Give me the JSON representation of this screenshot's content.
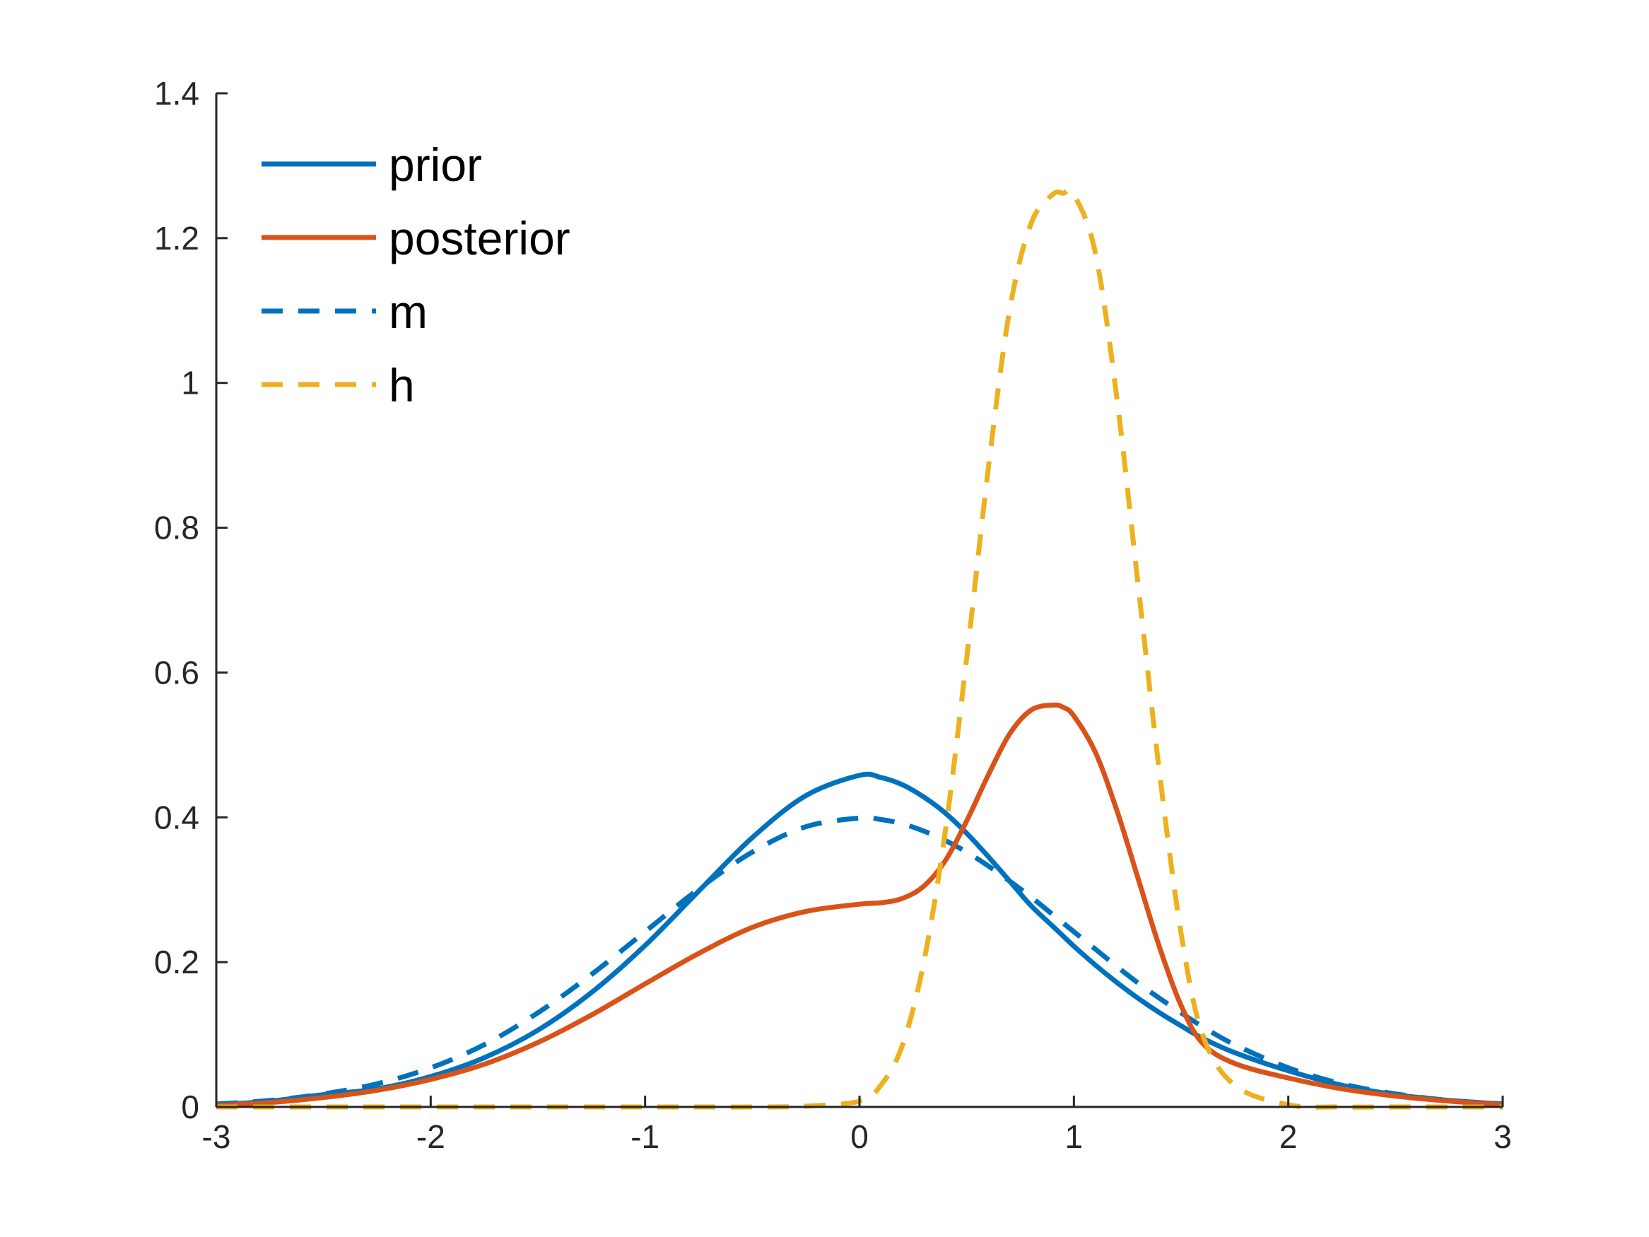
{
  "chart_data": {
    "type": "line",
    "title": "",
    "xlabel": "",
    "ylabel": "",
    "xlim": [
      -3,
      3
    ],
    "ylim": [
      0,
      1.4
    ],
    "xticks": [
      -3,
      -2,
      -1,
      0,
      1,
      2,
      3
    ],
    "xtick_labels": [
      "-3",
      "-2",
      "-1",
      "0",
      "1",
      "2",
      "3"
    ],
    "yticks": [
      0,
      0.2,
      0.4,
      0.6,
      0.8,
      1,
      1.2,
      1.4
    ],
    "ytick_labels": [
      "0",
      "0.2",
      "0.4",
      "0.6",
      "0.8",
      "1",
      "1.2",
      "1.4"
    ],
    "grid": false,
    "legend_position": "top-left",
    "x": [
      -3,
      -2.75,
      -2.5,
      -2.25,
      -2,
      -1.75,
      -1.5,
      -1.25,
      -1,
      -0.75,
      -0.5,
      -0.25,
      0,
      0.1,
      0.2,
      0.3,
      0.4,
      0.5,
      0.6,
      0.7,
      0.8,
      0.9,
      0.95,
      1,
      1.1,
      1.2,
      1.3,
      1.4,
      1.5,
      1.6,
      1.75,
      2,
      2.25,
      2.5,
      2.75,
      3
    ],
    "series": [
      {
        "name": "prior",
        "color": "#0072BD",
        "style": "solid",
        "values": [
          0.003,
          0.008,
          0.017,
          0.025,
          0.042,
          0.068,
          0.106,
          0.158,
          0.223,
          0.298,
          0.372,
          0.43,
          0.458,
          0.455,
          0.445,
          0.428,
          0.406,
          0.378,
          0.346,
          0.312,
          0.278,
          0.25,
          0.236,
          0.222,
          0.196,
          0.172,
          0.15,
          0.13,
          0.112,
          0.095,
          0.075,
          0.05,
          0.03,
          0.017,
          0.009,
          0.004
        ]
      },
      {
        "name": "posterior",
        "color": "#D95319",
        "style": "solid",
        "values": [
          0.002,
          0.006,
          0.013,
          0.023,
          0.038,
          0.059,
          0.089,
          0.127,
          0.17,
          0.212,
          0.248,
          0.27,
          0.28,
          0.282,
          0.288,
          0.305,
          0.34,
          0.395,
          0.458,
          0.515,
          0.548,
          0.555,
          0.552,
          0.54,
          0.49,
          0.41,
          0.315,
          0.22,
          0.14,
          0.088,
          0.06,
          0.04,
          0.025,
          0.015,
          0.008,
          0.003
        ]
      },
      {
        "name": "m",
        "color": "#0072BD",
        "style": "dashed",
        "values": [
          0.004,
          0.009,
          0.018,
          0.032,
          0.054,
          0.086,
          0.13,
          0.183,
          0.242,
          0.301,
          0.352,
          0.387,
          0.399,
          0.397,
          0.391,
          0.381,
          0.368,
          0.352,
          0.333,
          0.312,
          0.29,
          0.266,
          0.254,
          0.242,
          0.218,
          0.194,
          0.171,
          0.15,
          0.13,
          0.111,
          0.086,
          0.054,
          0.032,
          0.018,
          0.009,
          0.004
        ]
      },
      {
        "name": "h",
        "color": "#EDB120",
        "style": "dashed",
        "values": [
          0,
          0,
          0,
          0,
          0,
          0,
          0,
          0,
          0,
          0,
          0,
          0.001,
          0.008,
          0.03,
          0.085,
          0.2,
          0.38,
          0.62,
          0.88,
          1.1,
          1.22,
          1.26,
          1.262,
          1.26,
          1.18,
          0.98,
          0.72,
          0.46,
          0.24,
          0.1,
          0.03,
          0.003,
          0,
          0,
          0,
          0
        ]
      }
    ]
  }
}
